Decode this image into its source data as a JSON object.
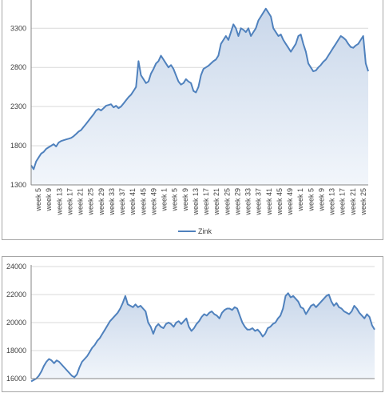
{
  "colors": {
    "line": "#4f81bd",
    "fill_top": "#c9d7ea",
    "fill_bottom": "#f2f6fb",
    "grid": "#d9d9d9",
    "axis": "#868686"
  },
  "chart_data": [
    {
      "type": "area",
      "title": "",
      "xlabel": "",
      "ylabel": "",
      "ylim": [
        1300,
        3650
      ],
      "yticks": [
        1300,
        1800,
        2300,
        2800,
        3300
      ],
      "grid": true,
      "legend": {
        "position": "bottom",
        "entries": [
          "Zink"
        ]
      },
      "x_tick_labels": [
        "week 5",
        "week 9",
        "week 13",
        "week 17",
        "week 21",
        "week 25",
        "week 29",
        "week 33",
        "week 37",
        "week 41",
        "week 45",
        "week 49",
        "week 1",
        "week 5",
        "week 9",
        "week 13",
        "week 17",
        "week 21",
        "week 25",
        "week 29",
        "week 33",
        "week 37",
        "week 41",
        "week 45",
        "week 49",
        "week 1",
        "week 5",
        "week 9",
        "week 13",
        "week 17",
        "week 21",
        "week 25"
      ],
      "series": [
        {
          "name": "Zink",
          "x": [
            0,
            1,
            2,
            3,
            4,
            5,
            6,
            7,
            8,
            9,
            10,
            11,
            12,
            13,
            14,
            15,
            16,
            17,
            18,
            19,
            20,
            21,
            22,
            23,
            24,
            25,
            26,
            27,
            28,
            29,
            30,
            31,
            32,
            33,
            34,
            35,
            36,
            37,
            38,
            39,
            40,
            41,
            42,
            43,
            44,
            45,
            46,
            47,
            48,
            49,
            50,
            51,
            52,
            53,
            54,
            55,
            56,
            57,
            58,
            59,
            60,
            61,
            62,
            63,
            64,
            65,
            66,
            67,
            68,
            69,
            70,
            71,
            72,
            73,
            74,
            75,
            76,
            77,
            78,
            79,
            80,
            81,
            82,
            83,
            84,
            85,
            86,
            87,
            88,
            89,
            90,
            91,
            92,
            93,
            94,
            95,
            96,
            97,
            98,
            99,
            100,
            101,
            102,
            103,
            104,
            105,
            106,
            107,
            108,
            109,
            110,
            111,
            112,
            113,
            114,
            115,
            116,
            117,
            118,
            119,
            120,
            121,
            122,
            123,
            124,
            125,
            126,
            127,
            128,
            129,
            130,
            131,
            132,
            133,
            134,
            135
          ],
          "values": [
            1550,
            1500,
            1600,
            1650,
            1700,
            1720,
            1760,
            1780,
            1800,
            1820,
            1790,
            1840,
            1860,
            1870,
            1880,
            1890,
            1900,
            1920,
            1950,
            1980,
            2000,
            2040,
            2080,
            2120,
            2160,
            2200,
            2250,
            2270,
            2250,
            2280,
            2310,
            2320,
            2330,
            2290,
            2310,
            2280,
            2300,
            2340,
            2380,
            2420,
            2450,
            2500,
            2550,
            2880,
            2700,
            2650,
            2600,
            2620,
            2720,
            2780,
            2850,
            2880,
            2950,
            2900,
            2850,
            2800,
            2830,
            2780,
            2700,
            2620,
            2580,
            2600,
            2650,
            2620,
            2600,
            2500,
            2480,
            2550,
            2700,
            2780,
            2800,
            2820,
            2850,
            2880,
            2900,
            2950,
            3100,
            3150,
            3200,
            3150,
            3250,
            3350,
            3300,
            3200,
            3300,
            3280,
            3250,
            3300,
            3200,
            3250,
            3300,
            3400,
            3450,
            3500,
            3550,
            3500,
            3450,
            3300,
            3250,
            3200,
            3220,
            3150,
            3100,
            3050,
            3000,
            3050,
            3100,
            3200,
            3220,
            3100,
            3000,
            2850,
            2800,
            2750,
            2760,
            2800,
            2830,
            2870,
            2900,
            2950,
            3000,
            3050,
            3100,
            3150,
            3200,
            3180,
            3150,
            3100,
            3060,
            3050,
            3080,
            3100,
            3150,
            3200,
            2850,
            2750
          ]
        }
      ]
    },
    {
      "type": "area",
      "title": "",
      "xlabel": "",
      "ylabel": "",
      "ylim": [
        16000,
        24000
      ],
      "yticks": [
        16000,
        18000,
        20000,
        22000,
        24000
      ],
      "grid": true,
      "series": [
        {
          "x": [
            0,
            1,
            2,
            3,
            4,
            5,
            6,
            7,
            8,
            9,
            10,
            11,
            12,
            13,
            14,
            15,
            16,
            17,
            18,
            19,
            20,
            21,
            22,
            23,
            24,
            25,
            26,
            27,
            28,
            29,
            30,
            31,
            32,
            33,
            34,
            35,
            36,
            37,
            38,
            39,
            40,
            41,
            42,
            43,
            44,
            45,
            46,
            47,
            48,
            49,
            50,
            51,
            52,
            53,
            54,
            55,
            56,
            57,
            58,
            59,
            60,
            61,
            62,
            63,
            64,
            65,
            66,
            67,
            68,
            69,
            70,
            71,
            72,
            73,
            74,
            75,
            76,
            77,
            78,
            79,
            80,
            81,
            82,
            83,
            84,
            85,
            86,
            87,
            88,
            89,
            90,
            91,
            92,
            93,
            94,
            95,
            96,
            97,
            98,
            99,
            100,
            101,
            102,
            103,
            104,
            105,
            106,
            107,
            108,
            109,
            110,
            111,
            112,
            113,
            114,
            115,
            116,
            117,
            118,
            119,
            120,
            121,
            122,
            123,
            124,
            125,
            126,
            127,
            128,
            129,
            130,
            131,
            132,
            133,
            134,
            135
          ],
          "values": [
            15800,
            15900,
            16000,
            16200,
            16500,
            16900,
            17200,
            17400,
            17300,
            17100,
            17300,
            17200,
            17000,
            16800,
            16600,
            16400,
            16200,
            16100,
            16300,
            16800,
            17200,
            17400,
            17600,
            17900,
            18200,
            18400,
            18700,
            18900,
            19200,
            19500,
            19800,
            20100,
            20300,
            20500,
            20700,
            21000,
            21400,
            21900,
            21300,
            21200,
            21100,
            21300,
            21100,
            21200,
            21000,
            20800,
            20000,
            19700,
            19200,
            19700,
            19900,
            19700,
            19600,
            19900,
            20000,
            19900,
            19700,
            20000,
            20100,
            19900,
            20100,
            20300,
            19700,
            19400,
            19600,
            19900,
            20100,
            20400,
            20600,
            20500,
            20700,
            20800,
            20600,
            20500,
            20300,
            20700,
            20900,
            21000,
            21000,
            20900,
            21100,
            21000,
            20500,
            20000,
            19700,
            19500,
            19500,
            19600,
            19400,
            19500,
            19300,
            19000,
            19200,
            19600,
            19700,
            19900,
            20000,
            20300,
            20500,
            21000,
            21900,
            22100,
            21800,
            21900,
            21700,
            21500,
            21100,
            21000,
            20600,
            20900,
            21200,
            21300,
            21100,
            21300,
            21500,
            21700,
            21900,
            22000,
            21500,
            21200,
            21400,
            21100,
            21000,
            20800,
            20700,
            20600,
            20800,
            21200,
            21000,
            20700,
            20500,
            20300,
            20600,
            20400,
            19800,
            19500
          ]
        }
      ]
    }
  ]
}
